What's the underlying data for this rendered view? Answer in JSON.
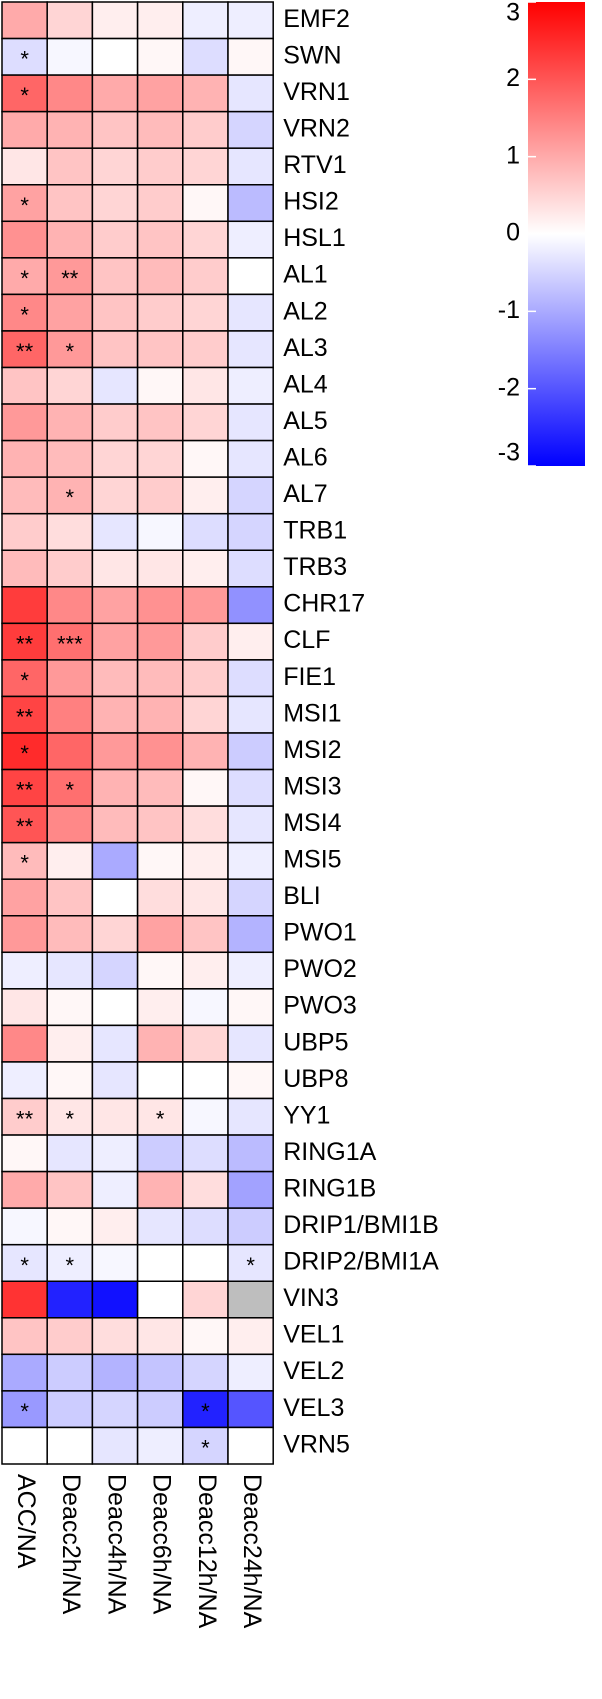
{
  "chart_data": {
    "type": "heatmap",
    "rows": [
      "EMF2",
      "SWN",
      "VRN1",
      "VRN2",
      "RTV1",
      "HSI2",
      "HSL1",
      "AL1",
      "AL2",
      "AL3",
      "AL4",
      "AL5",
      "AL6",
      "AL7",
      "TRB1",
      "TRB3",
      "CHR17",
      "CLF",
      "FIE1",
      "MSI1",
      "MSI2",
      "MSI3",
      "MSI4",
      "MSI5",
      "BLI",
      "PWO1",
      "PWO2",
      "PWO3",
      "UBP5",
      "UBP8",
      "YY1",
      "RING1A",
      "RING1B",
      "DRIP1/BMI1B",
      "DRIP2/BMI1A",
      "VIN3",
      "VEL1",
      "VEL2",
      "VEL3",
      "VRN5"
    ],
    "columns": [
      "ACC/NA",
      "Deacc2h/NA",
      "Deacc4h/NA",
      "Deacc6h/NA",
      "Deacc12h/NA",
      "Deacc24h/NA"
    ],
    "values": [
      [
        1.0,
        0.5,
        0.2,
        0.2,
        -0.2,
        -0.2
      ],
      [
        -0.4,
        -0.1,
        0,
        0.1,
        -0.4,
        0.1
      ],
      [
        1.8,
        1.4,
        1.0,
        1.1,
        0.9,
        -0.3
      ],
      [
        1.0,
        0.9,
        0.7,
        0.8,
        0.6,
        -0.5
      ],
      [
        0.3,
        0.7,
        0.5,
        0.6,
        0.5,
        -0.3
      ],
      [
        1.1,
        0.7,
        0.5,
        0.6,
        0.1,
        -0.8
      ],
      [
        1.3,
        0.9,
        0.6,
        0.7,
        0.5,
        -0.2
      ],
      [
        1.0,
        1.2,
        0.7,
        0.8,
        0.6,
        0
      ],
      [
        1.4,
        1.1,
        0.7,
        0.6,
        0.5,
        -0.3
      ],
      [
        1.8,
        1.2,
        0.7,
        0.7,
        0.6,
        -0.3
      ],
      [
        0.7,
        0.5,
        -0.3,
        0.1,
        0.3,
        -0.2
      ],
      [
        1.2,
        0.9,
        0.6,
        0.7,
        0.5,
        -0.3
      ],
      [
        0.9,
        0.8,
        0.5,
        0.5,
        0.1,
        -0.3
      ],
      [
        0.8,
        0.9,
        0.5,
        0.6,
        0.2,
        -0.5
      ],
      [
        0.6,
        0.4,
        -0.3,
        -0.1,
        -0.4,
        -0.5
      ],
      [
        0.8,
        0.6,
        0.3,
        0.3,
        0.2,
        -0.4
      ],
      [
        2.3,
        1.4,
        1.1,
        1.3,
        1.2,
        -1.3
      ],
      [
        2.3,
        1.7,
        1.1,
        1.2,
        0.6,
        0.2
      ],
      [
        1.8,
        1.2,
        0.8,
        0.8,
        0.6,
        -0.4
      ],
      [
        2.2,
        1.5,
        0.9,
        0.9,
        0.5,
        -0.3
      ],
      [
        2.5,
        1.8,
        1.2,
        1.3,
        0.9,
        -0.6
      ],
      [
        2.2,
        1.7,
        0.9,
        0.8,
        0.1,
        -0.4
      ],
      [
        2.0,
        1.4,
        0.8,
        0.7,
        0.4,
        -0.3
      ],
      [
        0.8,
        0.2,
        -1.0,
        0.1,
        0.2,
        -0.2
      ],
      [
        1.1,
        0.7,
        0,
        0.4,
        0.3,
        -0.5
      ],
      [
        1.2,
        0.8,
        0.5,
        1.1,
        0.7,
        -0.9
      ],
      [
        -0.2,
        -0.3,
        -0.5,
        0.1,
        0.2,
        -0.2
      ],
      [
        0.3,
        0.1,
        0,
        0.2,
        -0.1,
        0.1
      ],
      [
        1.4,
        0.2,
        -0.3,
        0.9,
        0.5,
        -0.3
      ],
      [
        -0.2,
        0.1,
        -0.3,
        0,
        0,
        0.1
      ],
      [
        0.6,
        0.3,
        0.3,
        0.3,
        -0.1,
        -0.3
      ],
      [
        0.1,
        -0.3,
        -0.2,
        -0.6,
        -0.4,
        -0.8
      ],
      [
        1.0,
        0.7,
        -0.2,
        0.9,
        0.4,
        -1.1
      ],
      [
        -0.1,
        0.1,
        0.2,
        -0.3,
        -0.4,
        -0.6
      ],
      [
        -0.3,
        -0.2,
        -0.1,
        0,
        0,
        -0.3
      ],
      [
        2.4,
        -2.6,
        -2.8,
        0,
        0.5,
        null
      ],
      [
        0.7,
        0.6,
        0.4,
        0.3,
        0.1,
        0.2
      ],
      [
        -1.0,
        -0.6,
        -0.9,
        -0.7,
        -0.5,
        -0.2
      ],
      [
        -1.2,
        -0.6,
        -0.5,
        -0.6,
        -2.6,
        -2.0
      ],
      [
        0,
        0,
        -0.3,
        -0.2,
        -0.5,
        0
      ]
    ],
    "annotations": [
      [
        null,
        null,
        null,
        null,
        null,
        null
      ],
      [
        "*",
        null,
        null,
        null,
        null,
        null
      ],
      [
        "*",
        null,
        null,
        null,
        null,
        null
      ],
      [
        null,
        null,
        null,
        null,
        null,
        null
      ],
      [
        null,
        null,
        null,
        null,
        null,
        null
      ],
      [
        "*",
        null,
        null,
        null,
        null,
        null
      ],
      [
        null,
        null,
        null,
        null,
        null,
        null
      ],
      [
        "*",
        "**",
        null,
        null,
        null,
        null
      ],
      [
        "*",
        null,
        null,
        null,
        null,
        null
      ],
      [
        "**",
        "*",
        null,
        null,
        null,
        null
      ],
      [
        null,
        null,
        null,
        null,
        null,
        null
      ],
      [
        null,
        null,
        null,
        null,
        null,
        null
      ],
      [
        null,
        null,
        null,
        null,
        null,
        null
      ],
      [
        null,
        "*",
        null,
        null,
        null,
        null
      ],
      [
        null,
        null,
        null,
        null,
        null,
        null
      ],
      [
        null,
        null,
        null,
        null,
        null,
        null
      ],
      [
        null,
        null,
        null,
        null,
        null,
        null
      ],
      [
        "**",
        "***",
        null,
        null,
        null,
        null
      ],
      [
        "*",
        null,
        null,
        null,
        null,
        null
      ],
      [
        "**",
        null,
        null,
        null,
        null,
        null
      ],
      [
        "*",
        null,
        null,
        null,
        null,
        null
      ],
      [
        "**",
        "*",
        null,
        null,
        null,
        null
      ],
      [
        "**",
        null,
        null,
        null,
        null,
        null
      ],
      [
        "*",
        null,
        null,
        null,
        null,
        null
      ],
      [
        null,
        null,
        null,
        null,
        null,
        null
      ],
      [
        null,
        null,
        null,
        null,
        null,
        null
      ],
      [
        null,
        null,
        null,
        null,
        null,
        null
      ],
      [
        null,
        null,
        null,
        null,
        null,
        null
      ],
      [
        null,
        null,
        null,
        null,
        null,
        null
      ],
      [
        null,
        null,
        null,
        null,
        null,
        null
      ],
      [
        "**",
        "*",
        null,
        "*",
        null,
        null
      ],
      [
        null,
        null,
        null,
        null,
        null,
        null
      ],
      [
        null,
        null,
        null,
        null,
        null,
        null
      ],
      [
        null,
        null,
        null,
        null,
        null,
        null
      ],
      [
        "*",
        "*",
        null,
        null,
        null,
        "*"
      ],
      [
        null,
        null,
        null,
        null,
        null,
        null
      ],
      [
        null,
        null,
        null,
        null,
        null,
        null
      ],
      [
        null,
        null,
        null,
        null,
        null,
        null
      ],
      [
        "*",
        null,
        null,
        null,
        "*",
        null
      ],
      [
        null,
        null,
        null,
        null,
        "*",
        null
      ]
    ],
    "zlim": [
      -3,
      3
    ],
    "zticks": [
      -3,
      -2,
      -1,
      0,
      1,
      2,
      3
    ],
    "low_color": "#0000ff",
    "mid_color": "#ffffff",
    "high_color": "#ff0000",
    "na_color": "#bebebe"
  }
}
